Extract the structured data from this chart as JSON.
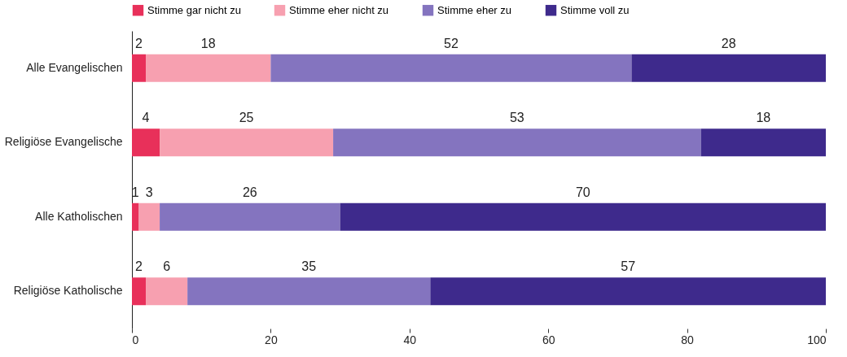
{
  "chart_data": {
    "type": "bar",
    "orientation": "horizontal",
    "stacked": true,
    "categories": [
      "Alle Evangelischen",
      "Religiöse Evangelische",
      "Alle Katholischen",
      "Religiöse Katholische"
    ],
    "series": [
      {
        "name": "Stimme gar nicht zu",
        "color": "#e8305a",
        "values": [
          2,
          4,
          1,
          2
        ]
      },
      {
        "name": "Stimme eher nicht zu",
        "color": "#f7a0b0",
        "values": [
          18,
          25,
          3,
          6
        ]
      },
      {
        "name": "Stimme eher zu",
        "color": "#8474bf",
        "values": [
          52,
          53,
          26,
          35
        ]
      },
      {
        "name": "Stimme voll zu",
        "color": "#3e2a8c",
        "values": [
          28,
          18,
          70,
          57
        ]
      }
    ],
    "xlim": [
      0,
      100
    ],
    "xticks": [
      0,
      20,
      40,
      60,
      80,
      100
    ],
    "data_labels": true,
    "legend": "top left",
    "grid": false
  }
}
